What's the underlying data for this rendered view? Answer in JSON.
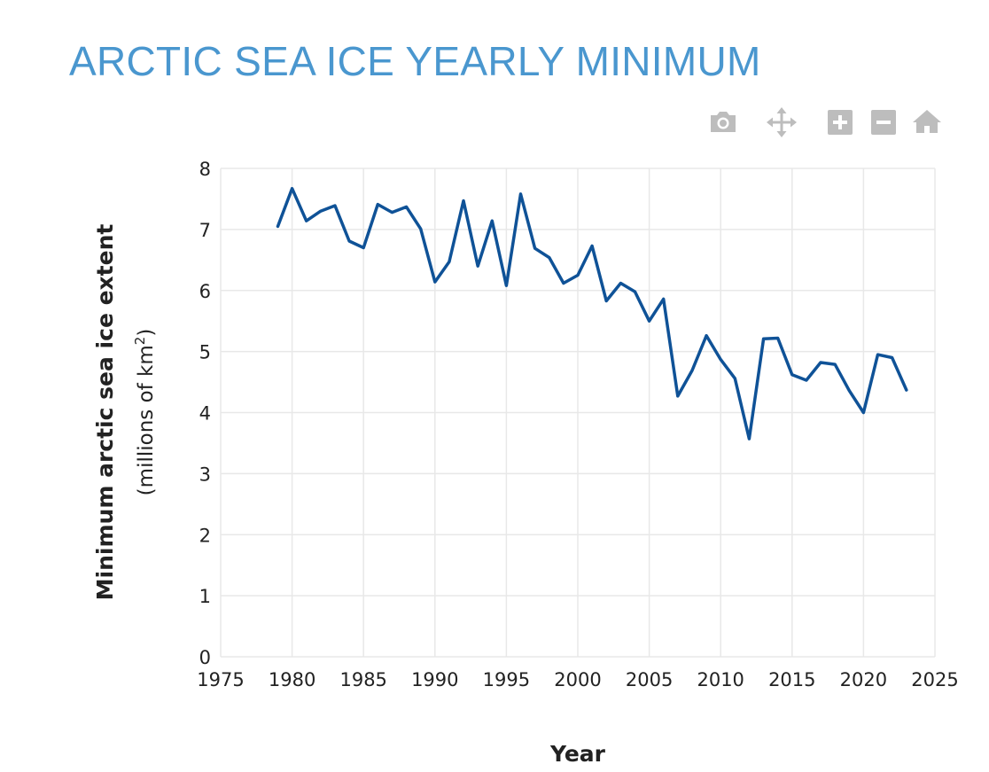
{
  "page": {
    "title": "ARCTIC SEA ICE YEARLY MINIMUM",
    "title_color": "#4a97cf"
  },
  "toolbar": {
    "icon_color": "#bdbdbd",
    "buttons": [
      {
        "icon": "camera-icon",
        "name": "download-plot-button"
      },
      {
        "icon": "pan-arrows-icon",
        "name": "pan-button"
      },
      {
        "icon": "zoom-in-icon",
        "name": "zoom-in-button"
      },
      {
        "icon": "zoom-out-icon",
        "name": "zoom-out-button"
      },
      {
        "icon": "home-icon",
        "name": "reset-axes-button"
      }
    ]
  },
  "chart_data": {
    "type": "line",
    "title": "",
    "xlabel": "Year",
    "ylabel": "Minimum arctic sea ice extent",
    "ylabel_units_prefix": "(millions of km",
    "ylabel_units_sup": "2",
    "ylabel_units_suffix": ")",
    "xlim": [
      1975,
      2025
    ],
    "ylim": [
      0,
      8
    ],
    "xticks": [
      1975,
      1980,
      1985,
      1990,
      1995,
      2000,
      2005,
      2010,
      2015,
      2020,
      2025
    ],
    "yticks": [
      0,
      1,
      2,
      3,
      4,
      5,
      6,
      7,
      8
    ],
    "grid": true,
    "line_color": "#0f5297",
    "grid_color": "#e8e8e8",
    "x": [
      1979,
      1980,
      1981,
      1982,
      1983,
      1984,
      1985,
      1986,
      1987,
      1988,
      1989,
      1990,
      1991,
      1992,
      1993,
      1994,
      1995,
      1996,
      1997,
      1998,
      1999,
      2000,
      2001,
      2002,
      2003,
      2004,
      2005,
      2006,
      2007,
      2008,
      2009,
      2010,
      2011,
      2012,
      2013,
      2014,
      2015,
      2016,
      2017,
      2018,
      2019,
      2020,
      2021,
      2022,
      2023
    ],
    "y": [
      7.05,
      7.67,
      7.14,
      7.3,
      7.39,
      6.81,
      6.7,
      7.41,
      7.28,
      7.37,
      7.01,
      6.14,
      6.47,
      7.47,
      6.4,
      7.14,
      6.08,
      7.58,
      6.69,
      6.54,
      6.12,
      6.25,
      6.73,
      5.83,
      6.12,
      5.98,
      5.5,
      5.86,
      4.27,
      4.69,
      5.26,
      4.87,
      4.56,
      3.57,
      5.21,
      5.22,
      4.62,
      4.53,
      4.82,
      4.79,
      4.36,
      4.0,
      4.95,
      4.9,
      4.37
    ]
  }
}
